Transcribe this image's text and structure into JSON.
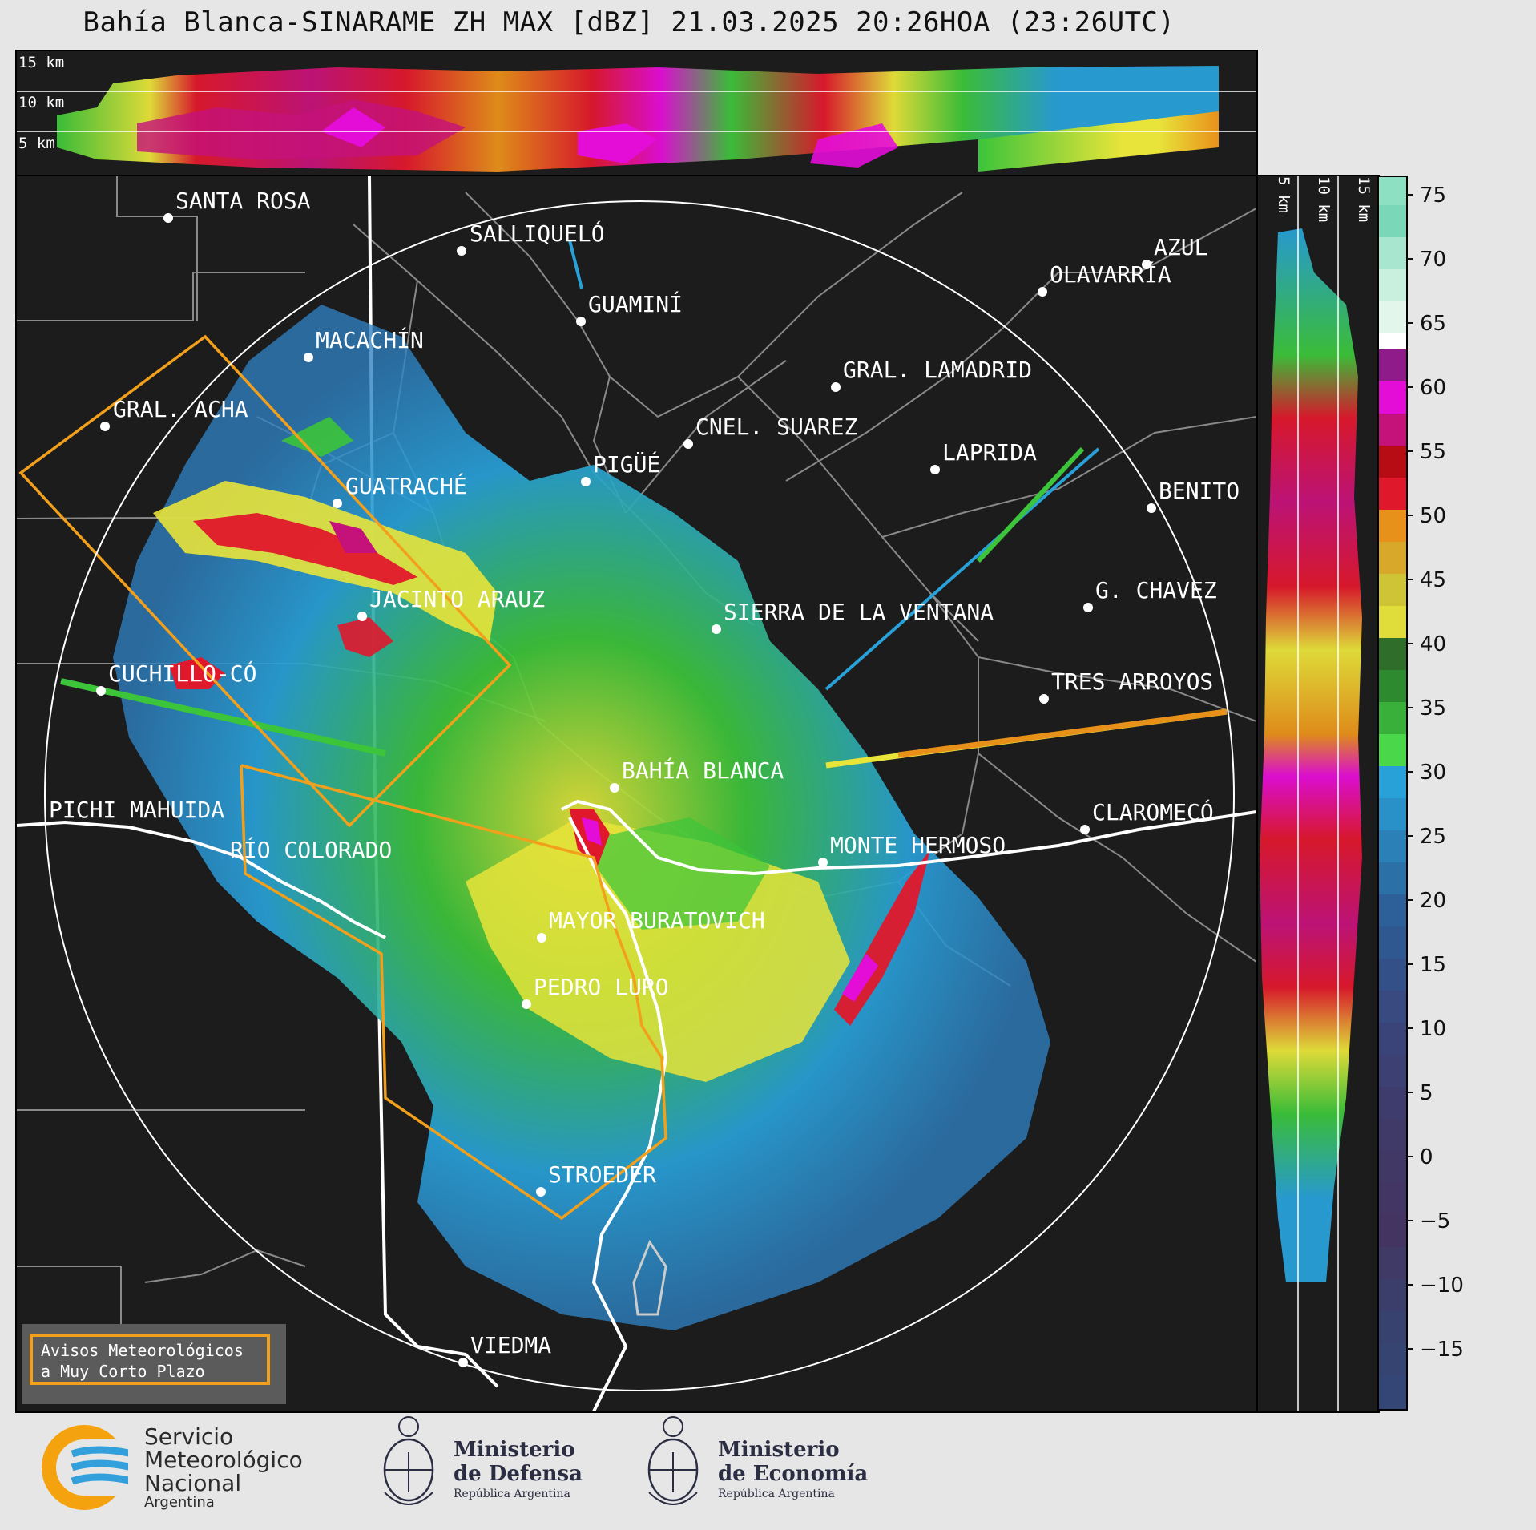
{
  "title": "Bahía Blanca-SINARAME ZH MAX [dBZ] 21.03.2025 20:26HOA (23:26UTC)",
  "top_panel": {
    "height_labels": [
      "15 km",
      "10 km",
      "5 km"
    ]
  },
  "side_panel": {
    "height_labels": [
      "5 km",
      "10 km",
      "15 km"
    ]
  },
  "colorbar": {
    "ticks": [
      "75",
      "70",
      "65",
      "60",
      "55",
      "50",
      "45",
      "40",
      "35",
      "30",
      "25",
      "20",
      "15",
      "10",
      "5",
      "0",
      "−5",
      "−10",
      "−15"
    ],
    "colors": {
      "teal": "#6fd3b4",
      "white": "#ffffff",
      "magenta": "#e40dd8",
      "purple": "#9b1a8c",
      "red": "#e0182c",
      "orange": "#e8911a",
      "yellow": "#e8e43a",
      "green": "#3cc43a",
      "blue": "#28a0d8",
      "slate": "#3f5d8a"
    }
  },
  "towns": [
    {
      "name": "SANTA ROSA"
    },
    {
      "name": "SALLIQUELÓ"
    },
    {
      "name": "AZUL"
    },
    {
      "name": "OLAVARRÍA"
    },
    {
      "name": "GUAMINÍ"
    },
    {
      "name": "MACACHÍN"
    },
    {
      "name": "GRAL. LAMADRID"
    },
    {
      "name": "GRAL. ACHA"
    },
    {
      "name": "CNEL. SUAREZ"
    },
    {
      "name": "LAPRIDA"
    },
    {
      "name": "PIGÜÉ"
    },
    {
      "name": "GUATRACHÉ"
    },
    {
      "name": "BENITO"
    },
    {
      "name": "G. CHAVEZ"
    },
    {
      "name": "JACINTO ARAUZ"
    },
    {
      "name": "SIERRA DE LA VENTANA"
    },
    {
      "name": "CUCHILLO-CÓ"
    },
    {
      "name": "TRES ARROYOS"
    },
    {
      "name": "BAHÍA BLANCA"
    },
    {
      "name": "CLAROMECÓ"
    },
    {
      "name": "PICHI MAHUIDA"
    },
    {
      "name": "MONTE HERMOSO"
    },
    {
      "name": "RÍO COLORADO"
    },
    {
      "name": "MAYOR BURATOVICH"
    },
    {
      "name": "PEDRO LURO"
    },
    {
      "name": "STROEDER"
    },
    {
      "name": "VIEDMA"
    }
  ],
  "legend": {
    "line1": "Avisos Meteorológicos",
    "line2": "a Muy Corto Plazo"
  },
  "logos": {
    "smn": {
      "line1": "Servicio",
      "line2": "Meteorológico",
      "line3": "Nacional",
      "line4": "Argentina"
    },
    "defensa": {
      "line1": "Ministerio",
      "line2": "de Defensa",
      "line3": "República Argentina"
    },
    "economia": {
      "line1": "Ministerio",
      "line2": "de Economía",
      "line3": "República Argentina"
    }
  },
  "accent_colors": {
    "warning_polygon": "#f2a01c",
    "map_bg": "#1c1c1c",
    "coast": "#ffffff",
    "borders": "#8a8a8a"
  }
}
